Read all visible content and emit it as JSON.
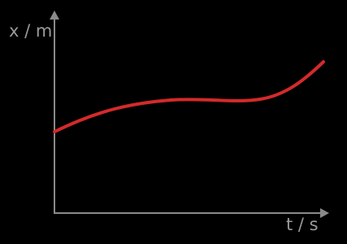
{
  "axes": {
    "y_label": "x / m",
    "x_label": "t / s"
  }
}
